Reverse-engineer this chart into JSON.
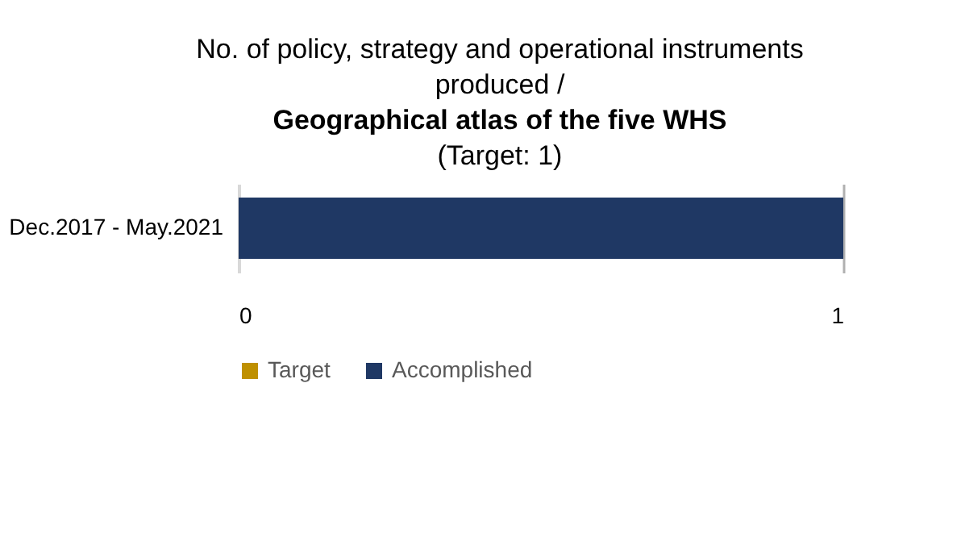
{
  "chart_data": {
    "type": "bar",
    "orientation": "horizontal",
    "title": "No. of policy, strategy and operational instruments produced /",
    "subtitle": "Geographical atlas of the five WHS",
    "annotations": [
      "(Target: 1)"
    ],
    "categories": [
      "Dec.2017 - May.2021"
    ],
    "series": [
      {
        "name": "Target",
        "color": "#bf9000",
        "values": [
          null
        ]
      },
      {
        "name": "Accomplished",
        "color": "#1f3864",
        "values": [
          1
        ]
      }
    ],
    "xlim": [
      0,
      1
    ],
    "xticks": [
      0,
      1
    ],
    "grid": "x",
    "legend": "bottom"
  }
}
